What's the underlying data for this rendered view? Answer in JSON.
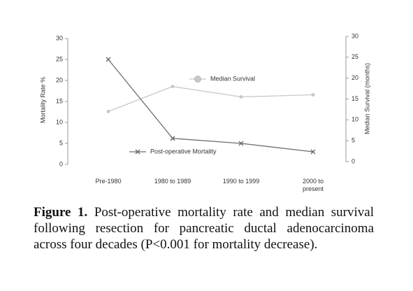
{
  "chart_data": {
    "type": "line",
    "categories": [
      "Pre-1980",
      "1980 to 1989",
      "1990 to 1999",
      "2000 to present"
    ],
    "ylabel": "Mortality Rate %",
    "y2label": "Median Survival (months)",
    "ylim": [
      0,
      30
    ],
    "yticks": [
      0,
      5,
      10,
      15,
      20,
      25,
      30
    ],
    "y2lim": [
      0,
      30
    ],
    "y2ticks": [
      0,
      5,
      10,
      15,
      20,
      25,
      30
    ],
    "series": [
      {
        "name": "Median Survival",
        "color": "#c8c8c8",
        "marker": "circle",
        "axis": "y2",
        "values": [
          12,
          18,
          15.5,
          16
        ]
      },
      {
        "name": "Post-operative Mortality",
        "color": "#6e6e6e",
        "marker": "x",
        "axis": "y",
        "values": [
          25,
          6.2,
          5,
          3
        ]
      }
    ]
  },
  "caption": {
    "label": "Figure 1.",
    "text": "Post-operative mortality rate and median survival following resection for pancreatic ductal adenocarcinoma across four decades (P<0.001 for mortality decrease)."
  }
}
